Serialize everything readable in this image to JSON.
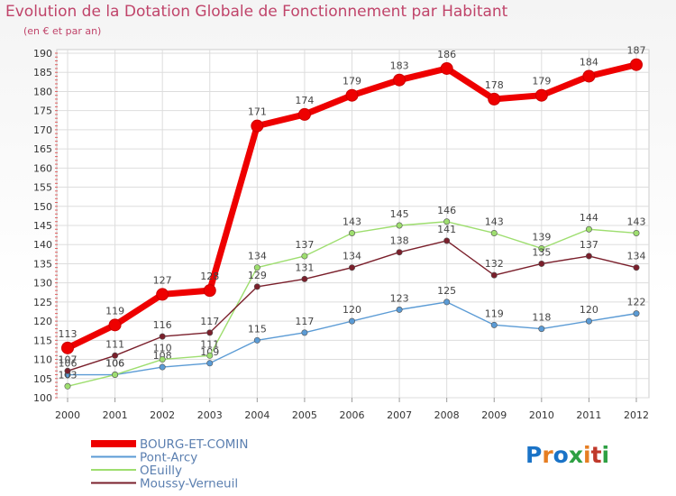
{
  "title": "Evolution de la Dotation Globale de Fonctionnement par Habitant",
  "subtitle": "(en € et par an)",
  "logo": {
    "text": "Proxiti",
    "colors": [
      "#1a73c7",
      "#e67e22",
      "#1a73c7",
      "#2ea043",
      "#e67e22",
      "#c0392b",
      "#2ea043"
    ]
  },
  "chart_data": {
    "type": "line",
    "title": "Evolution de la Dotation Globale de Fonctionnement par Habitant",
    "ylabel": "(en € et par an)",
    "xlabel": "",
    "x": [
      "2000",
      "2001",
      "2002",
      "2003",
      "2004",
      "2005",
      "2006",
      "2007",
      "2008",
      "2009",
      "2010",
      "2011",
      "2012"
    ],
    "ylim": [
      100,
      190
    ],
    "yticks": [
      100,
      105,
      110,
      115,
      120,
      125,
      130,
      135,
      140,
      145,
      150,
      155,
      160,
      165,
      170,
      175,
      180,
      185,
      190
    ],
    "grid": true,
    "legend_position": "bottom-left",
    "series": [
      {
        "name": "BOURG-ET-COMIN",
        "color": "#ee0000",
        "thick": true,
        "values": [
          113,
          119,
          127,
          128,
          171,
          174,
          179,
          183,
          186,
          178,
          179,
          184,
          187
        ]
      },
      {
        "name": "Pont-Arcy",
        "color": "#5b9bd5",
        "values": [
          106,
          106,
          108,
          109,
          115,
          117,
          120,
          123,
          125,
          119,
          118,
          120,
          122
        ]
      },
      {
        "name": "OEuilly",
        "color": "#9ede6f",
        "values": [
          103,
          106,
          110,
          111,
          134,
          137,
          143,
          145,
          146,
          143,
          139,
          144,
          143
        ]
      },
      {
        "name": "Moussy-Verneuil",
        "color": "#7a1f2b",
        "values": [
          107,
          111,
          116,
          117,
          129,
          131,
          134,
          138,
          141,
          132,
          135,
          137,
          134
        ]
      }
    ]
  }
}
